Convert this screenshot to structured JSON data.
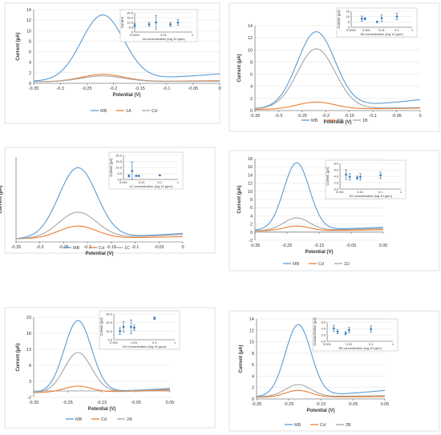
{
  "chart_data": [
    {
      "type": "line",
      "xlabel": "Potential (V)",
      "ylabel": "Current (µA)",
      "xlim": [
        -0.35,
        0
      ],
      "ylim": [
        0,
        14
      ],
      "xticks": [
        "-0.35",
        "-0.3",
        "-0.25",
        "-0.2",
        "-0.15",
        "-0.1",
        "-0.05",
        "0"
      ],
      "yticks": [
        "0",
        "2",
        "4",
        "6",
        "8",
        "10",
        "12",
        "14"
      ],
      "series": [
        {
          "name": "MB",
          "color": "#5b9bd5",
          "peak_x": -0.22,
          "peak_y": 13,
          "base_left": 0.4,
          "base_right": 1.8
        },
        {
          "name": "1A",
          "color": "#ed7d31",
          "peak_x": -0.22,
          "peak_y": 1.7,
          "base_left": 0.3,
          "base_right": 0.5
        },
        {
          "name": "Cd",
          "color": "#a5a5a5",
          "peak_x": -0.22,
          "peak_y": 1.4,
          "base_left": 0.3,
          "base_right": 0.4
        }
      ],
      "legend": [
        "MB",
        "1A",
        "Cd"
      ],
      "legend_position": "bottom",
      "inset": {
        "type": "scatter",
        "xlabel": "1A concentration (log 10 ppm)",
        "ylabel": "Current",
        "xscale": "log",
        "xlim": [
          0.0001,
          1
        ],
        "ylim": [
          0,
          20
        ],
        "xticks": [
          "0.0001",
          "0.01",
          "1"
        ],
        "yticks": [
          "0",
          "5.0",
          "10.0",
          "15.0",
          "20.0"
        ],
        "x": [
          0.0001,
          0.001,
          0.003,
          0.03,
          0.1
        ],
        "y": [
          7,
          8,
          10,
          8,
          10
        ],
        "err": [
          2,
          2,
          7,
          2,
          3
        ]
      }
    },
    {
      "type": "line",
      "xlabel": "Potential (V)",
      "ylabel": "Current (µA)",
      "xlim": [
        -0.35,
        0
      ],
      "ylim": [
        0,
        14
      ],
      "xticks": [
        "-0.35",
        "-0.3",
        "-0.25",
        "-0.2",
        "-0.15",
        "-0.1",
        "-0.05",
        "0"
      ],
      "yticks": [
        "0",
        "2",
        "4",
        "6",
        "8",
        "10",
        "12",
        "14"
      ],
      "series": [
        {
          "name": "MB",
          "color": "#5b9bd5",
          "peak_x": -0.22,
          "peak_y": 13,
          "base_left": 0.3,
          "base_right": 1.8
        },
        {
          "name": "Cd",
          "color": "#ed7d31",
          "peak_x": -0.22,
          "peak_y": 1.4,
          "base_left": 0.2,
          "base_right": 0.4
        },
        {
          "name": "1B",
          "color": "#a5a5a5",
          "peak_x": -0.22,
          "peak_y": 10.2,
          "base_left": 0.3,
          "base_right": 0.5
        }
      ],
      "legend": [
        "MB",
        "Cd",
        "1B"
      ],
      "legend_position": "bottom",
      "inset": {
        "type": "scatter",
        "xlabel": "1B concentration (log 10 ppm)",
        "ylabel": "Current (µA)",
        "xscale": "log",
        "xlim": [
          0.0001,
          1
        ],
        "ylim": [
          0,
          15
        ],
        "xticks": [
          "0.0001",
          "0.001",
          "0.01",
          "0.1",
          "1"
        ],
        "yticks": [
          "0",
          "5",
          "10",
          "15"
        ],
        "x": [
          0.0005,
          0.0008,
          0.005,
          0.01,
          0.1
        ],
        "y": [
          8,
          8,
          5,
          8.5,
          10
        ],
        "err": [
          2.5,
          1,
          0.5,
          3,
          3
        ]
      }
    },
    {
      "type": "line",
      "xlabel": "Potential (V)",
      "ylabel": "Current (µA)",
      "xlim": [
        -0.35,
        0
      ],
      "ylim": [
        0,
        8
      ],
      "xticks": [
        "-0.35",
        "-0.3",
        "-0.25",
        "-0.2",
        "-0.15",
        "-0.1",
        "-0.05",
        "0"
      ],
      "yticks": [],
      "series": [
        {
          "name": "MB",
          "color": "#5b9bd5",
          "peak_x": -0.22,
          "peak_y": 7,
          "base_left": 0.3,
          "base_right": 0.8
        },
        {
          "name": "Cd",
          "color": "#ed7d31",
          "peak_x": -0.22,
          "peak_y": 1.5,
          "base_left": 0.3,
          "base_right": 0.5
        },
        {
          "name": "1C",
          "color": "#a5a5a5",
          "peak_x": -0.22,
          "peak_y": 2.8,
          "base_left": 0.3,
          "base_right": 0.7
        }
      ],
      "legend": [
        "MB",
        "Cd",
        "1C"
      ],
      "legend_position": "bottom",
      "inset": {
        "type": "scatter",
        "xlabel": "1C concentration (log 10 ppm)",
        "ylabel": "Current (µA)",
        "xscale": "log",
        "xlim": [
          0.001,
          1
        ],
        "ylim": [
          0,
          20
        ],
        "xticks": [
          "0.001",
          "0.01",
          "0.1",
          "1"
        ],
        "yticks": [
          "0.0",
          "5.0",
          "10.0",
          "15.0",
          "20.0"
        ],
        "x": [
          0.002,
          0.003,
          0.005,
          0.007,
          0.1
        ],
        "y": [
          3,
          7,
          3,
          3,
          3.5
        ],
        "err": [
          1,
          7.5,
          0.5,
          0.5,
          0.3
        ]
      }
    },
    {
      "type": "line",
      "xlabel": "Potential (V)",
      "ylabel": "Current (µA)",
      "xlim": [
        -0.35,
        0.05
      ],
      "ylim": [
        -2,
        18
      ],
      "xticks": [
        "-0.35",
        "-0.25",
        "-0.15",
        "-0.05",
        "0.05"
      ],
      "yticks": [
        "-2",
        "0",
        "2",
        "4",
        "6",
        "8",
        "10",
        "12",
        "14",
        "16",
        "18"
      ],
      "series": [
        {
          "name": "MB",
          "color": "#5b9bd5",
          "peak_x": -0.22,
          "peak_y": 17,
          "base_left": 0.5,
          "base_right": 1.2
        },
        {
          "name": "Cd",
          "color": "#ed7d31",
          "peak_x": -0.22,
          "peak_y": 1.5,
          "base_left": 0.3,
          "base_right": 0.6
        },
        {
          "name": "1D",
          "color": "#a5a5a5",
          "peak_x": -0.22,
          "peak_y": 3.5,
          "base_left": 0.4,
          "base_right": 0.9
        }
      ],
      "legend": [
        "MB",
        "Cd",
        "1D"
      ],
      "legend_position": "bottom",
      "inset": {
        "type": "scatter",
        "xlabel": "1D concentration (log 10 ppm)",
        "ylabel": "Current (µA)",
        "xscale": "log",
        "xlim": [
          0.001,
          1
        ],
        "ylim": [
          0,
          8
        ],
        "xticks": [
          "0.001",
          "0.01",
          "0.1",
          "1"
        ],
        "yticks": [
          "0.0",
          "2.0",
          "4.0",
          "6.0",
          "8.0"
        ],
        "x": [
          0.002,
          0.003,
          0.007,
          0.01,
          0.1
        ],
        "y": [
          4.5,
          3.8,
          3.5,
          3.8,
          4.3
        ],
        "err": [
          1.5,
          1,
          0.5,
          1,
          1
        ]
      }
    },
    {
      "type": "line",
      "xlabel": "Potential (V)",
      "ylabel": "Current (µA)",
      "xlim": [
        -0.35,
        0.05
      ],
      "ylim": [
        -2,
        23
      ],
      "xticks": [
        "-0.35",
        "-0.25",
        "-0.15",
        "-0.05",
        "0.05"
      ],
      "yticks": [
        "-2",
        "3",
        "8",
        "13",
        "18",
        "23"
      ],
      "series": [
        {
          "name": "MB",
          "color": "#5b9bd5",
          "peak_x": -0.22,
          "peak_y": 22,
          "base_left": -0.5,
          "base_right": 0.8
        },
        {
          "name": "Cd",
          "color": "#ed7d31",
          "peak_x": -0.22,
          "peak_y": 1.5,
          "base_left": -0.5,
          "base_right": 0.3
        },
        {
          "name": "2A",
          "color": "#a5a5a5",
          "peak_x": -0.22,
          "peak_y": 12,
          "base_left": -0.5,
          "base_right": 0.6
        }
      ],
      "legend": [
        "MB",
        "Cd",
        "2A"
      ],
      "legend_position": "bottom",
      "inset": {
        "type": "scatter",
        "xlabel": "2A Concentration (log 10 ppm)",
        "ylabel": "Current (µA)",
        "xscale": "log",
        "xlim": [
          0.001,
          1
        ],
        "ylim": [
          0,
          30
        ],
        "xticks": [
          "0.001",
          "0.01",
          "0.1",
          "1"
        ],
        "yticks": [
          "0.0",
          "10.0",
          "20.0",
          "30.0"
        ],
        "x": [
          0.002,
          0.003,
          0.007,
          0.01,
          0.1
        ],
        "y": [
          10,
          15,
          15,
          14,
          25
        ],
        "err": [
          4,
          6,
          8,
          3,
          1.5
        ]
      }
    },
    {
      "type": "line",
      "xlabel": "Potential (V)",
      "ylabel": "Current (µA)",
      "xlim": [
        -0.35,
        0.05
      ],
      "ylim": [
        0,
        14
      ],
      "xticks": [
        "-0.35",
        "-0.25",
        "-0.15",
        "-0.05",
        "0.05"
      ],
      "yticks": [
        "0",
        "2",
        "4",
        "6",
        "8",
        "10",
        "12",
        "14"
      ],
      "series": [
        {
          "name": "MB",
          "color": "#5b9bd5",
          "peak_x": -0.22,
          "peak_y": 13,
          "base_left": 0.4,
          "base_right": 1.5
        },
        {
          "name": "Cd",
          "color": "#ed7d31",
          "peak_x": -0.22,
          "peak_y": 1.5,
          "base_left": 0.3,
          "base_right": 0.4
        },
        {
          "name": "2B",
          "color": "#a5a5a5",
          "peak_x": -0.22,
          "peak_y": 2.5,
          "base_left": 0.4,
          "base_right": 0.6
        }
      ],
      "legend": [
        "MB",
        "Cd",
        "2B"
      ],
      "legend_position": "bottom",
      "inset": {
        "type": "scatter",
        "xlabel": "2B concentration (log 10 ppm)",
        "ylabel": "Concentration (µA)",
        "xscale": "log",
        "xlim": [
          0.001,
          1
        ],
        "ylim": [
          0,
          6
        ],
        "xticks": [
          "0.001",
          "0.01",
          "0.1",
          "1"
        ],
        "yticks": [
          "0.0",
          "2.0",
          "4.0",
          "6.0"
        ],
        "x": [
          0.002,
          0.003,
          0.007,
          0.01,
          0.1
        ],
        "y": [
          4,
          3,
          2.5,
          3.5,
          3.8
        ],
        "err": [
          1,
          0.6,
          0.5,
          0.8,
          1
        ]
      }
    }
  ]
}
